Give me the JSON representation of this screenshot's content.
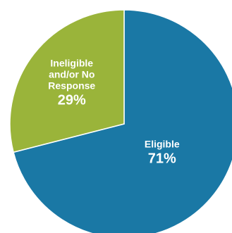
{
  "chart_data": {
    "type": "pie",
    "title": "",
    "start_angle_deg": 0,
    "direction": "clockwise",
    "slices": [
      {
        "label_lines": [
          "Eligible"
        ],
        "percent_label": "71%",
        "value": 71,
        "color": "#1a78a5"
      },
      {
        "label_lines": [
          "Ineligible",
          "and/or No",
          "Response"
        ],
        "percent_label": "29%",
        "value": 29,
        "color": "#9ab43a"
      }
    ]
  }
}
